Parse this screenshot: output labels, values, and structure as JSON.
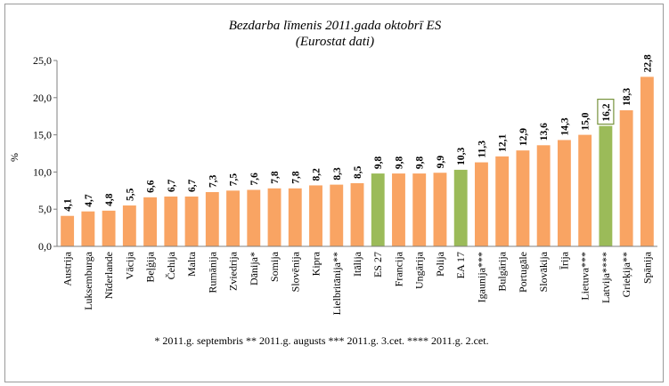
{
  "chart_data": {
    "type": "bar",
    "title": "Bezdarba līmenis 2011.gada oktobrī ES",
    "subtitle": "(Eurostat dati)",
    "ylabel": "%",
    "xlabel": "",
    "ylim": [
      0,
      25
    ],
    "yticks": [
      "0,0",
      "5,0",
      "10,0",
      "15,0",
      "20,0",
      "25,0"
    ],
    "grid": false,
    "legend": "none",
    "categories": [
      "Austrija",
      "Luksemburga",
      "Nīderlande",
      "Vācija",
      "Beļģija",
      "Čehija",
      "Malta",
      "Rumānija",
      "Zviedrija",
      "Dānija*",
      "Somija",
      "Slovēnija",
      "Kipra",
      "Lielbritānija**",
      "Itālija",
      "ES 27",
      "Francija",
      "Ungārija",
      "Polija",
      "EA 17",
      "Igaunija***",
      "Bulgārija",
      "Portugāle",
      "Slovākija",
      "Īrija",
      "Lietuva***",
      "Latvija****",
      "Grieķija**",
      "Spānija"
    ],
    "values": [
      4.1,
      4.7,
      4.8,
      5.5,
      6.6,
      6.7,
      6.7,
      7.3,
      7.5,
      7.6,
      7.8,
      7.8,
      8.2,
      8.3,
      8.5,
      9.8,
      9.8,
      9.8,
      9.9,
      10.3,
      11.3,
      12.1,
      12.9,
      13.6,
      14.3,
      15.0,
      16.2,
      18.3,
      22.8
    ],
    "value_labels": [
      "4,1",
      "4,7",
      "4,8",
      "5,5",
      "6,6",
      "6,7",
      "6,7",
      "7,3",
      "7,5",
      "7,6",
      "7,8",
      "7,8",
      "8,2",
      "8,3",
      "8,5",
      "9,8",
      "9,8",
      "9,8",
      "9,9",
      "10,3",
      "11,3",
      "12,1",
      "12,9",
      "13,6",
      "14,3",
      "15,0",
      "16,2",
      "18,3",
      "22,8"
    ],
    "highlight": [
      "ES 27",
      "EA 17",
      "Latvija****"
    ],
    "boxed_label": "Latvija****",
    "colors": {
      "default": "#F9A463",
      "highlight": "#9BBB59",
      "box": "#77933C",
      "axis": "#7f7f7f"
    },
    "footnote": "* 2011.g. septembris   ** 2011.g. augusts *** 2011.g. 3.cet.  **** 2011.g. 2.cet."
  }
}
